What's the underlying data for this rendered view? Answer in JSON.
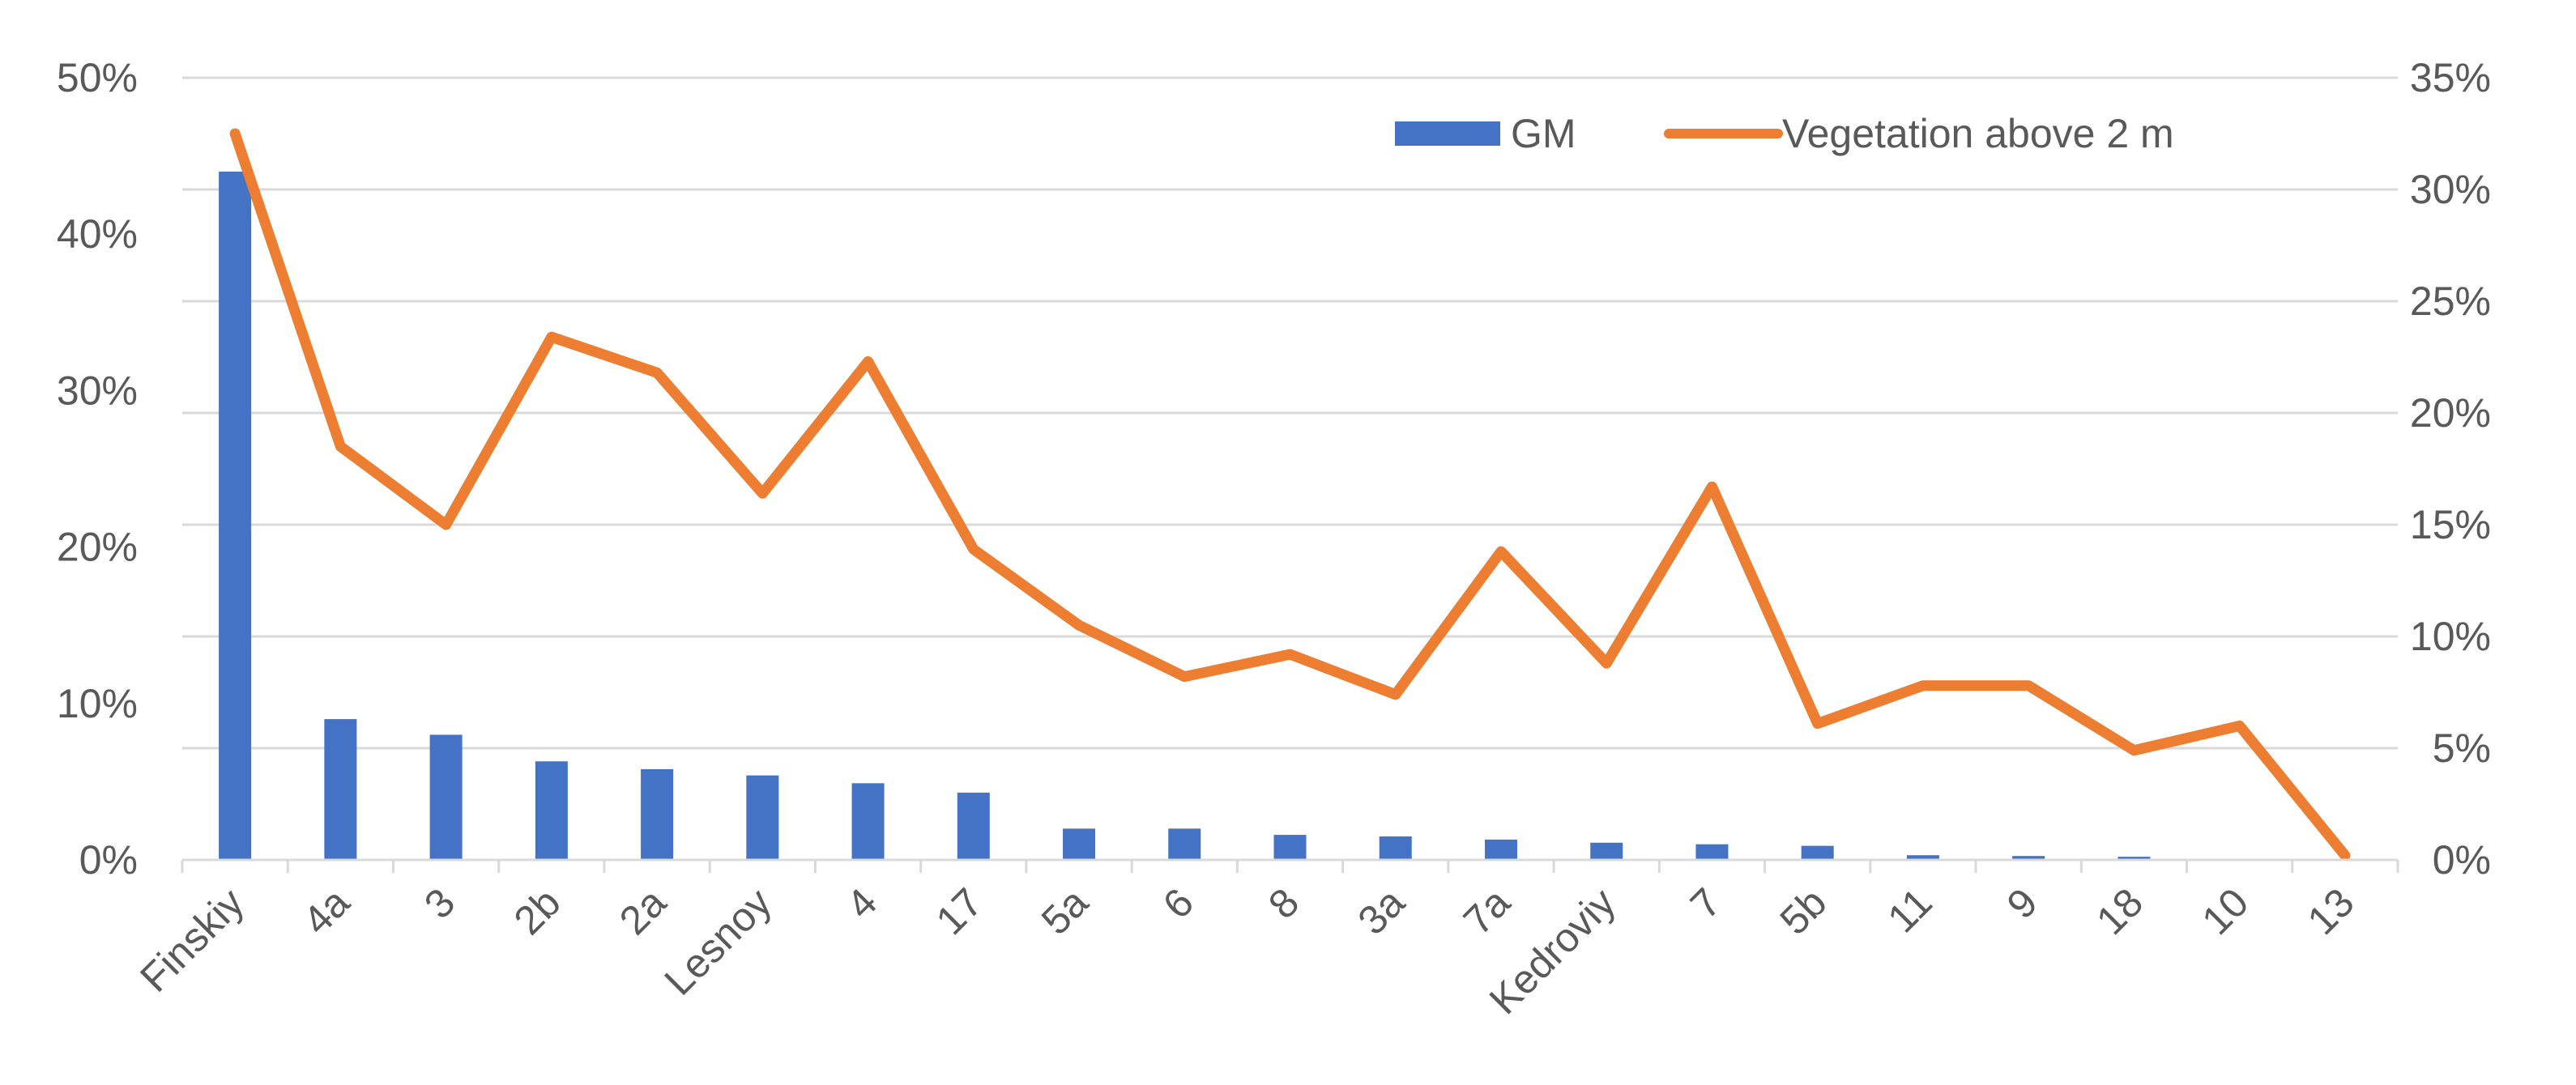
{
  "chart_data": {
    "type": "bar+line",
    "categories": [
      "Finskiy",
      "4a",
      "3",
      "2b",
      "2a",
      "Lesnoy",
      "4",
      "17",
      "5a",
      "6",
      "8",
      "3a",
      "7a",
      "Kedroviy",
      "7",
      "5b",
      "11",
      "9",
      "18",
      "10",
      "13"
    ],
    "series": [
      {
        "name": "GM",
        "type": "bar",
        "axis": "left",
        "color": "#4472c4",
        "values": [
          44.0,
          9.0,
          8.0,
          6.3,
          5.8,
          5.4,
          4.9,
          4.3,
          2.0,
          2.0,
          1.6,
          1.5,
          1.3,
          1.1,
          1.0,
          0.9,
          0.3,
          0.25,
          0.2,
          0.0,
          0.0
        ]
      },
      {
        "name": "Vegetation above 2 m",
        "type": "line",
        "axis": "right",
        "color": "#ed7d31",
        "values": [
          32.5,
          18.5,
          15.0,
          23.4,
          21.8,
          16.4,
          22.3,
          13.9,
          10.5,
          8.2,
          9.2,
          7.4,
          13.8,
          8.8,
          16.7,
          6.1,
          7.8,
          7.8,
          4.9,
          6.0,
          0.2
        ]
      }
    ],
    "y_left": {
      "ticks": [
        "0%",
        "10%",
        "20%",
        "30%",
        "40%",
        "50%"
      ],
      "range": [
        0,
        50
      ]
    },
    "y_right": {
      "ticks": [
        "0%",
        "5%",
        "10%",
        "15%",
        "20%",
        "25%",
        "30%",
        "35%"
      ],
      "range": [
        0,
        35
      ]
    },
    "grid": true,
    "legend_position": "top-right"
  }
}
